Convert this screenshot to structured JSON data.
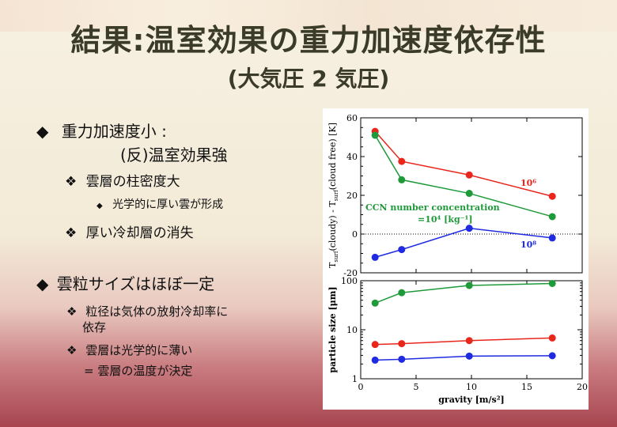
{
  "slide": {
    "title": "結果:温室効果の重力加速度依存性",
    "subtitle": "(大気圧 2 気圧)"
  },
  "bullets": {
    "b1_marker": "◆",
    "b1_line1": "重力加速度小 :",
    "b1_line2": "(反)温室効果強",
    "b1_s1_marker": "❖",
    "b1_s1": "雲層の柱密度大",
    "b1_s1a_marker": "◆",
    "b1_s1a": "光学的に厚い雲が形成",
    "b1_s2_marker": "❖",
    "b1_s2": "厚い冷却層の消失",
    "b2_marker": "◆",
    "b2_line1": "雲粒サイズはほぼ一定",
    "b2_s1_marker": "❖",
    "b2_s1_line1": "粒径は気体の放射冷却率に",
    "b2_s1_line2": "依存",
    "b2_s2_marker": "❖",
    "b2_s2_line1": "雲層は光学的に薄い",
    "b2_s2_line2": "= 雲層の温度が決定"
  },
  "chart_data": [
    {
      "type": "line",
      "ylabel_main": "T",
      "ylabel_sub1": "surf",
      "ylabel_mid": "(cloudy) - T",
      "ylabel_sub2": "surf",
      "ylabel_end": "(cloud free) [K]",
      "xlim": [
        0,
        20
      ],
      "ylim": [
        -20,
        60
      ],
      "yticks": [
        "-20",
        "0",
        "20",
        "40",
        "60"
      ],
      "zero_line": "dotted",
      "x": [
        1.3,
        3.7,
        9.8,
        17.3
      ],
      "series": [
        {
          "name": "10⁶",
          "color": "#e8261c",
          "values": [
            53,
            37.5,
            30.5,
            19.5
          ]
        },
        {
          "name": "CCN number concentration",
          "name2": "=10⁴ [kg⁻¹]",
          "color": "#1f9a3a",
          "values": [
            51,
            28,
            21,
            9
          ]
        },
        {
          "name": "10⁸",
          "color": "#1f2be0",
          "values": [
            -12,
            -8,
            3,
            -2
          ]
        }
      ]
    },
    {
      "type": "line",
      "ylabel": "particle size [μm]",
      "xlabel": "gravity [m/s²]",
      "yscale": "log",
      "xlim": [
        0,
        20
      ],
      "ylim": [
        1,
        100
      ],
      "xticks": [
        "0",
        "5",
        "10",
        "15",
        "20"
      ],
      "yticks": [
        "1",
        "10",
        "100"
      ],
      "x": [
        1.3,
        3.7,
        9.8,
        17.3
      ],
      "series": [
        {
          "color": "#1f9a3a",
          "values": [
            35,
            57,
            80,
            88
          ]
        },
        {
          "color": "#e8261c",
          "values": [
            5.0,
            5.2,
            6.0,
            6.8
          ]
        },
        {
          "color": "#1f2be0",
          "values": [
            2.4,
            2.5,
            2.9,
            2.95
          ]
        }
      ]
    }
  ]
}
